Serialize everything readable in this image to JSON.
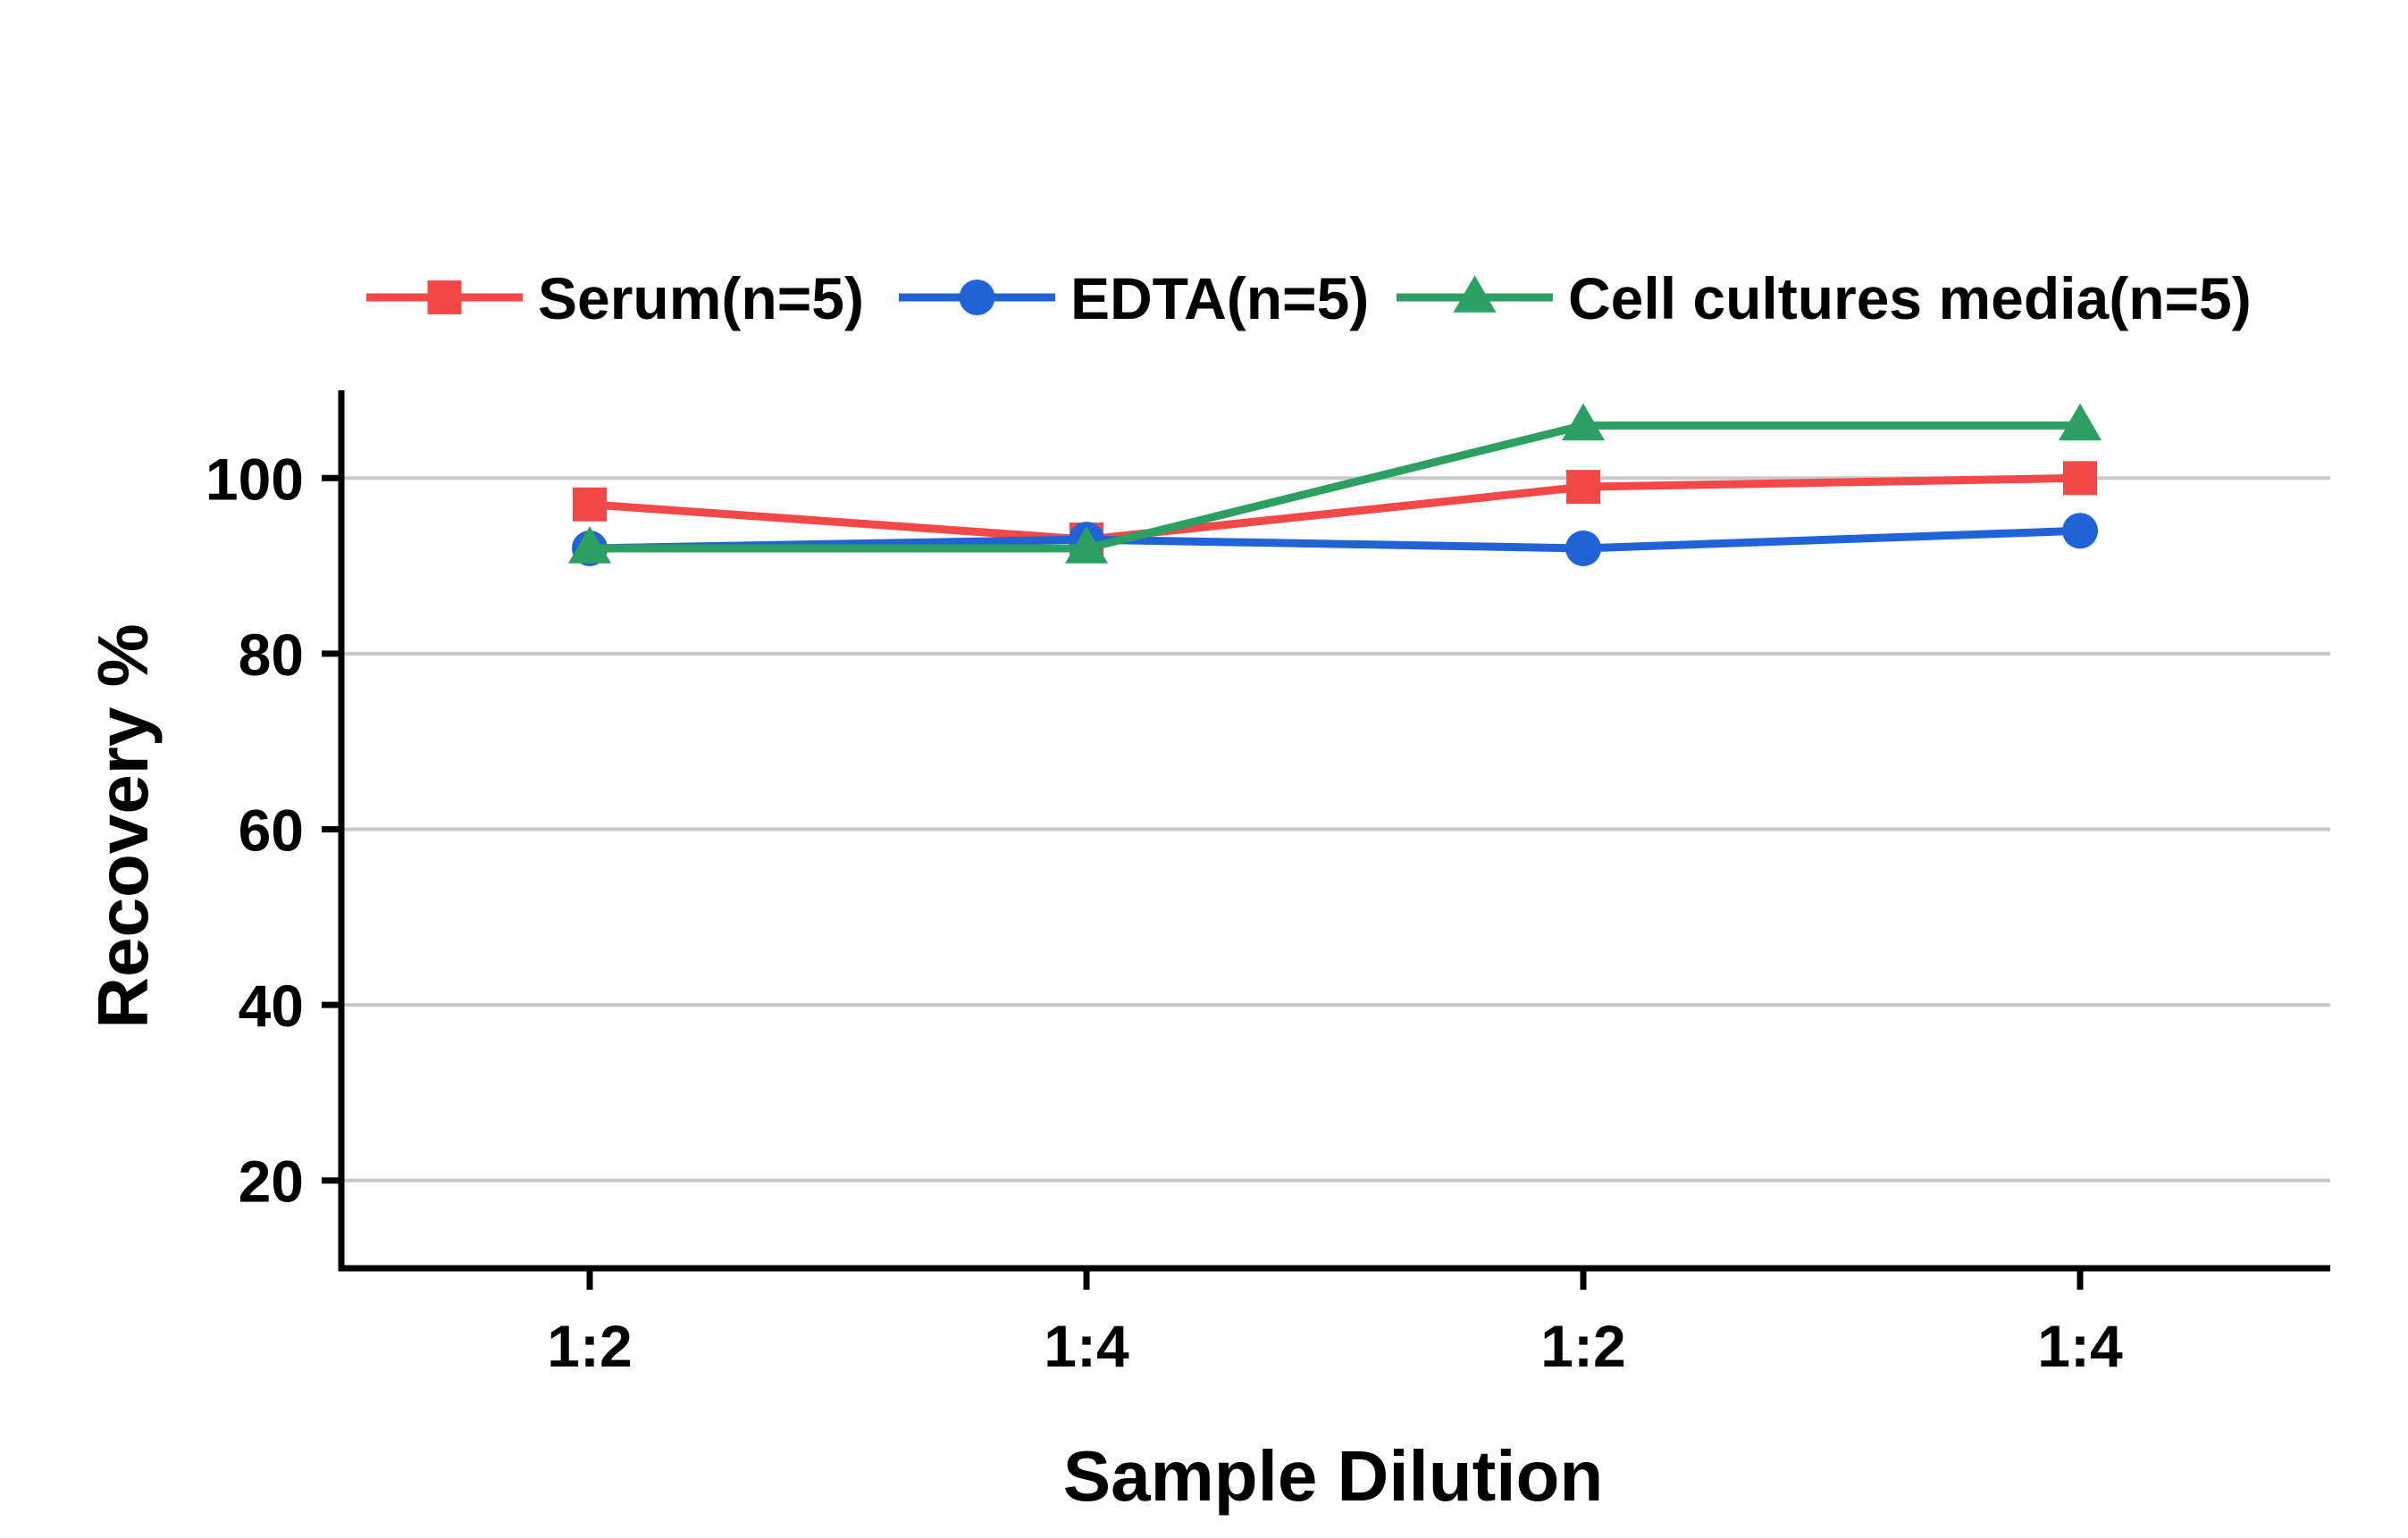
{
  "chart_data": {
    "type": "line",
    "title": "",
    "xlabel": "Sample Dilution",
    "ylabel": "Recovery %",
    "categories": [
      "1:2",
      "1:4",
      "1:2",
      "1:4"
    ],
    "ylim": [
      10,
      110
    ],
    "yticks": [
      20,
      40,
      60,
      80,
      100
    ],
    "grid": "horizontal",
    "legend_position": "top",
    "series": [
      {
        "name": "Serum(n=5)",
        "values": [
          97,
          93,
          99,
          100
        ],
        "color": "#F24848",
        "marker": "square"
      },
      {
        "name": "EDTA(n=5)",
        "values": [
          92,
          93,
          92,
          94
        ],
        "color": "#1F63D6",
        "marker": "circle"
      },
      {
        "name": "Cell cultures media(n=5)",
        "values": [
          92,
          92,
          106,
          106
        ],
        "color": "#2CA062",
        "marker": "triangle"
      }
    ]
  }
}
